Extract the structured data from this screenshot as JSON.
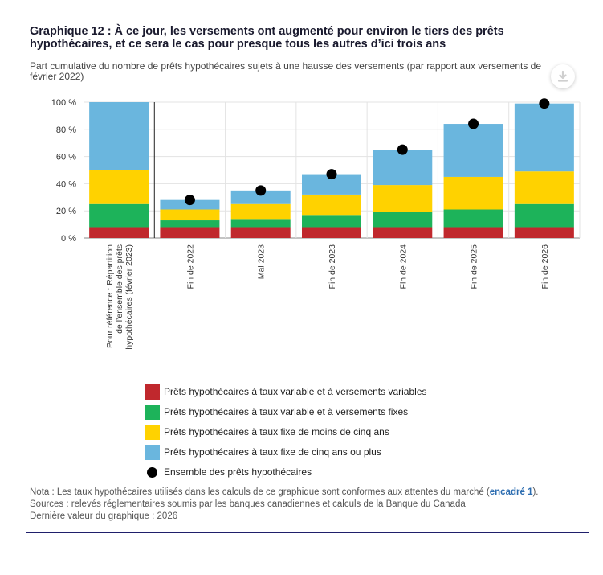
{
  "header": {
    "title": "Graphique 12 : À ce jour, les versements ont augmenté pour environ le tiers des prêts hypothécaires, et ce sera le cas pour presque tous les autres d’ici trois ans",
    "subtitle": "Part cumulative du nombre de prêts hypothécaires sujets à une hausse des versements (par rapport aux versements de février 2022)"
  },
  "toolbar": {
    "download_icon": "download-icon"
  },
  "colors": {
    "variable_variable": "#c0282d",
    "variable_fixe": "#1db35a",
    "fixe_moins_cinq": "#ffd200",
    "fixe_cinq_plus": "#6ab6de",
    "ensemble": "#000000"
  },
  "chart_data": {
    "type": "bar",
    "stacked": true,
    "categories": [
      "Pour référence : Répartition de l’ensemble des prêts hypothécaires (février 2023)",
      "Fin de 2022",
      "Mai 2023",
      "Fin de 2023",
      "Fin de 2024",
      "Fin de 2025",
      "Fin de 2026"
    ],
    "series": [
      {
        "name": "Prêts hypothécaires à taux variable et à versements variables",
        "values": [
          8,
          8,
          8,
          8,
          8,
          8,
          8
        ]
      },
      {
        "name": "Prêts hypothécaires à taux variable et à versements fixes",
        "values": [
          17,
          5,
          6,
          9,
          11,
          13,
          17
        ]
      },
      {
        "name": "Prêts hypothécaires à taux fixe de moins de cinq ans",
        "values": [
          25,
          8,
          11,
          15,
          20,
          24,
          24
        ]
      },
      {
        "name": "Prêts hypothécaires à taux fixe de cinq ans ou plus",
        "values": [
          50,
          7,
          10,
          15,
          26,
          39,
          50
        ]
      }
    ],
    "points": {
      "name": "Ensemble des prêts hypothécaires",
      "values": [
        null,
        28,
        35,
        47,
        65,
        84,
        99
      ]
    },
    "yticks": [
      "0 %",
      "20 %",
      "40 %",
      "60 %",
      "80 %",
      "100 %"
    ],
    "ylim": [
      0,
      100
    ],
    "grid": true,
    "reference_separator_after": 0
  },
  "legend": [
    {
      "label": "Prêts hypothécaires à taux variable et à versements variables",
      "color": "#c0282d",
      "marker": "square"
    },
    {
      "label": "Prêts hypothécaires à taux variable et à versements fixes",
      "color": "#1db35a",
      "marker": "square"
    },
    {
      "label": "Prêts hypothécaires à taux fixe de moins de cinq ans",
      "color": "#ffd200",
      "marker": "square"
    },
    {
      "label": "Prêts hypothécaires à taux fixe de cinq ans ou plus",
      "color": "#6ab6de",
      "marker": "square"
    },
    {
      "label": "Ensemble des prêts hypothécaires",
      "color": "#000000",
      "marker": "circle"
    }
  ],
  "notes": {
    "nota_prefix": "Nota : Les taux hypothécaires utilisés dans les calculs de ce graphique sont conformes aux attentes du marché (",
    "nota_link": "encadré 1",
    "nota_suffix": ").",
    "sources": "Sources : relevés réglementaires soumis par les banques canadiennes et calculs de la Banque du Canada",
    "last_value": "Dernière valeur du graphique : 2026"
  }
}
